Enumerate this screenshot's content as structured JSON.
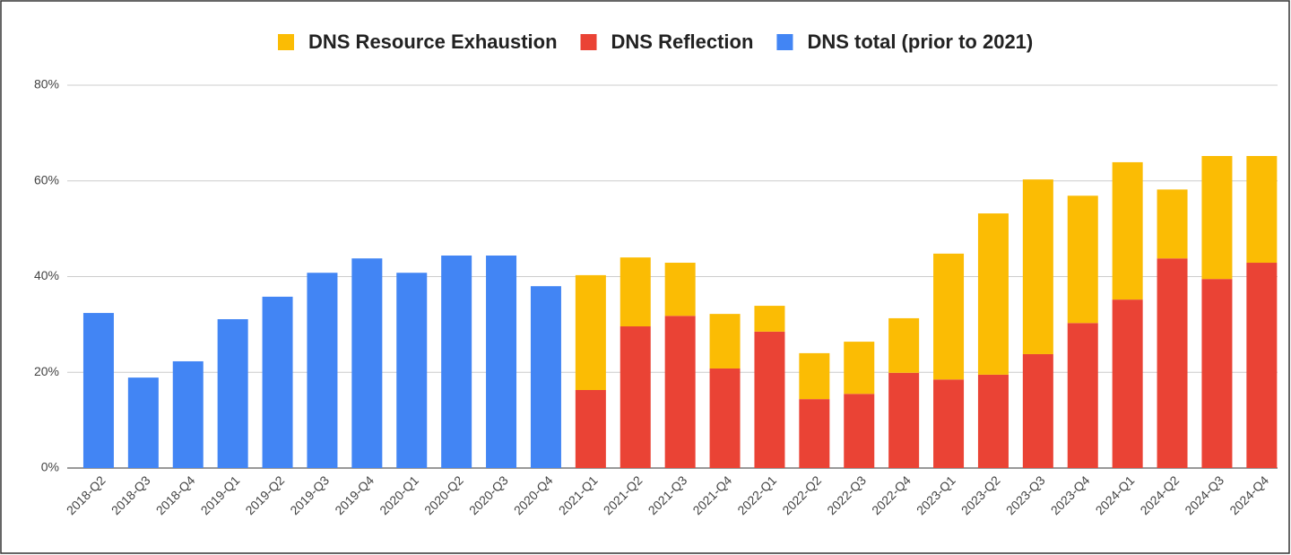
{
  "chart_data": {
    "type": "stacked-bar",
    "categories": [
      "2018-Q2",
      "2018-Q3",
      "2018-Q4",
      "2019-Q1",
      "2019-Q2",
      "2019-Q3",
      "2019-Q4",
      "2020-Q1",
      "2020-Q2",
      "2020-Q3",
      "2020-Q4",
      "2021-Q1",
      "2021-Q2",
      "2021-Q3",
      "2021-Q4",
      "2022-Q1",
      "2022-Q2",
      "2022-Q3",
      "2022-Q4",
      "2023-Q1",
      "2023-Q2",
      "2023-Q3",
      "2023-Q4",
      "2024-Q1",
      "2024-Q2",
      "2024-Q3",
      "2024-Q4"
    ],
    "series": [
      {
        "name": "DNS Resource Exhaustion",
        "color": "#fbbc04",
        "values": [
          null,
          null,
          null,
          null,
          null,
          null,
          null,
          null,
          null,
          null,
          null,
          24,
          14.4,
          11.1,
          11.4,
          5.4,
          9.6,
          10.9,
          11.4,
          26.3,
          33.7,
          36.5,
          26.6,
          28.7,
          14.4,
          25.7,
          22.3
        ]
      },
      {
        "name": "DNS Reflection",
        "color": "#ea4335",
        "values": [
          null,
          null,
          null,
          null,
          null,
          null,
          null,
          null,
          null,
          null,
          null,
          16.3,
          29.6,
          31.8,
          20.8,
          28.5,
          14.4,
          15.5,
          19.9,
          18.5,
          19.5,
          23.8,
          30.3,
          35.2,
          43.8,
          39.5,
          42.9
        ]
      },
      {
        "name": "DNS total (prior to 2021)",
        "color": "#4285f4",
        "values": [
          32.4,
          18.9,
          22.3,
          31.1,
          35.8,
          40.8,
          43.8,
          40.8,
          44.4,
          44.4,
          38,
          null,
          null,
          null,
          null,
          null,
          null,
          null,
          null,
          null,
          null,
          null,
          null,
          null,
          null,
          null,
          null
        ]
      }
    ],
    "ylim": [
      0,
      80
    ],
    "yticks": [
      {
        "value": 0,
        "label": "0%"
      },
      {
        "value": 20,
        "label": "20%"
      },
      {
        "value": 40,
        "label": "40%"
      },
      {
        "value": 60,
        "label": "60%"
      },
      {
        "value": 80,
        "label": "80%"
      }
    ],
    "grid": true
  }
}
